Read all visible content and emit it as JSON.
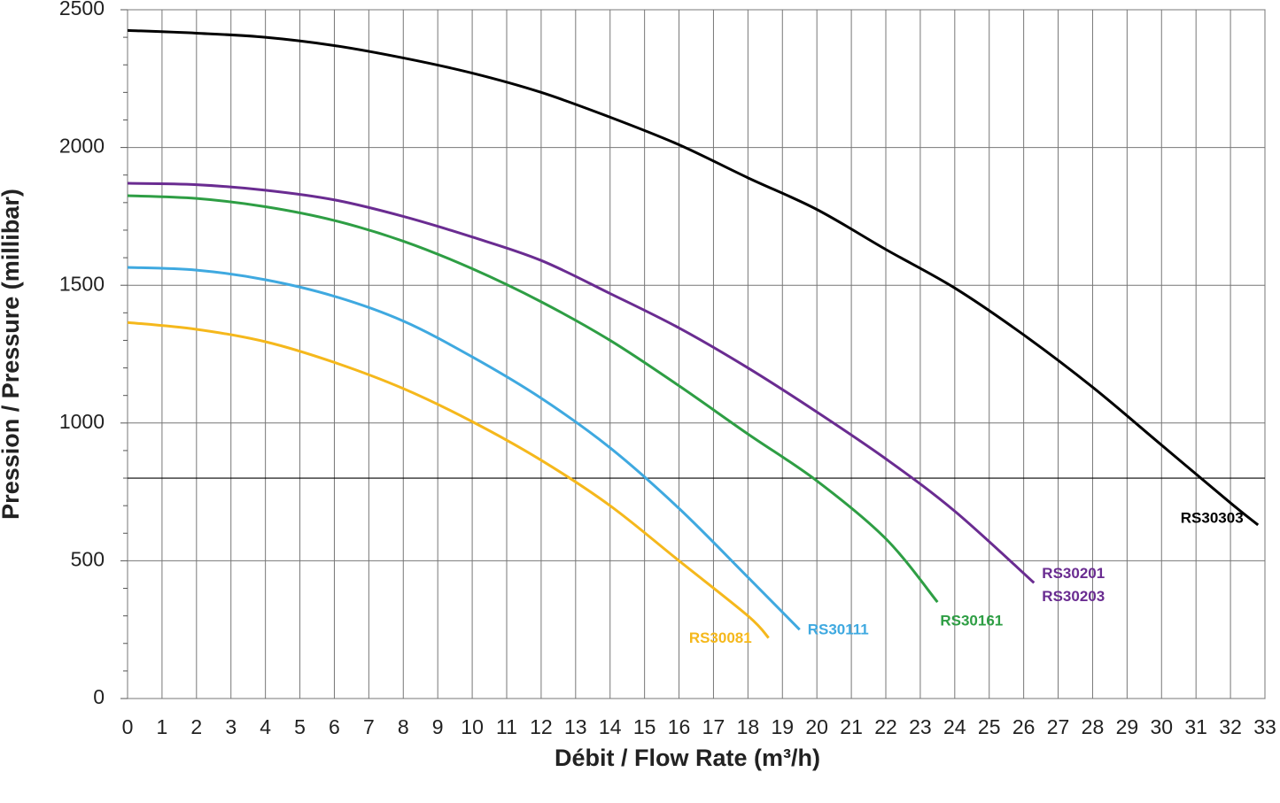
{
  "chart_data": {
    "type": "line",
    "xlabel": "Débit / Flow Rate (m³/h)",
    "ylabel": "Pression / Pressure (millibar)",
    "xlim": [
      0,
      33
    ],
    "ylim": [
      0,
      2500
    ],
    "xticks": [
      0,
      1,
      2,
      3,
      4,
      5,
      6,
      7,
      8,
      9,
      10,
      11,
      12,
      13,
      14,
      15,
      16,
      17,
      18,
      19,
      20,
      21,
      22,
      23,
      24,
      25,
      26,
      27,
      28,
      29,
      30,
      31,
      32,
      33
    ],
    "yticks": [
      0,
      500,
      1000,
      1500,
      2000,
      2500
    ],
    "yminorticks": [
      100,
      200,
      300,
      400,
      600,
      700,
      800,
      900,
      1100,
      1200,
      1300,
      1400,
      1600,
      1700,
      1800,
      1900,
      2100,
      2200,
      2300,
      2400
    ],
    "hline": 800,
    "grid": true,
    "series": [
      {
        "labels": [
          "RS30303"
        ],
        "color": "#000000",
        "x": [
          0,
          2,
          4,
          6,
          8,
          10,
          12,
          14,
          16,
          18,
          20,
          22,
          24,
          26,
          28,
          30,
          32,
          32.8
        ],
        "values": [
          2425,
          2415,
          2400,
          2370,
          2325,
          2270,
          2200,
          2110,
          2010,
          1890,
          1775,
          1630,
          1490,
          1320,
          1130,
          920,
          710,
          630
        ]
      },
      {
        "labels": [
          "RS30201",
          "RS30203"
        ],
        "color": "#6a2c91",
        "x": [
          0,
          2,
          4,
          6,
          8,
          10,
          12,
          14,
          16,
          18,
          20,
          22,
          24,
          26.3
        ],
        "values": [
          1870,
          1865,
          1845,
          1810,
          1750,
          1675,
          1590,
          1470,
          1345,
          1200,
          1040,
          870,
          680,
          420
        ]
      },
      {
        "labels": [
          "RS30161"
        ],
        "color": "#2e9e44",
        "x": [
          0,
          2,
          4,
          6,
          8,
          10,
          12,
          14,
          16,
          18,
          20,
          22,
          23.5
        ],
        "values": [
          1825,
          1815,
          1785,
          1735,
          1660,
          1560,
          1440,
          1300,
          1135,
          960,
          790,
          580,
          350
        ]
      },
      {
        "labels": [
          "RS30111"
        ],
        "color": "#3fa9e0",
        "x": [
          0,
          2,
          4,
          6,
          8,
          10,
          12,
          14,
          16,
          18,
          19.5
        ],
        "values": [
          1565,
          1555,
          1520,
          1460,
          1370,
          1240,
          1090,
          910,
          690,
          440,
          250
        ]
      },
      {
        "labels": [
          "RS30081"
        ],
        "color": "#f5b81c",
        "x": [
          0,
          2,
          4,
          6,
          8,
          10,
          12,
          14,
          16,
          18,
          18.6
        ],
        "values": [
          1365,
          1340,
          1295,
          1220,
          1125,
          1005,
          865,
          700,
          500,
          300,
          220
        ]
      }
    ]
  }
}
